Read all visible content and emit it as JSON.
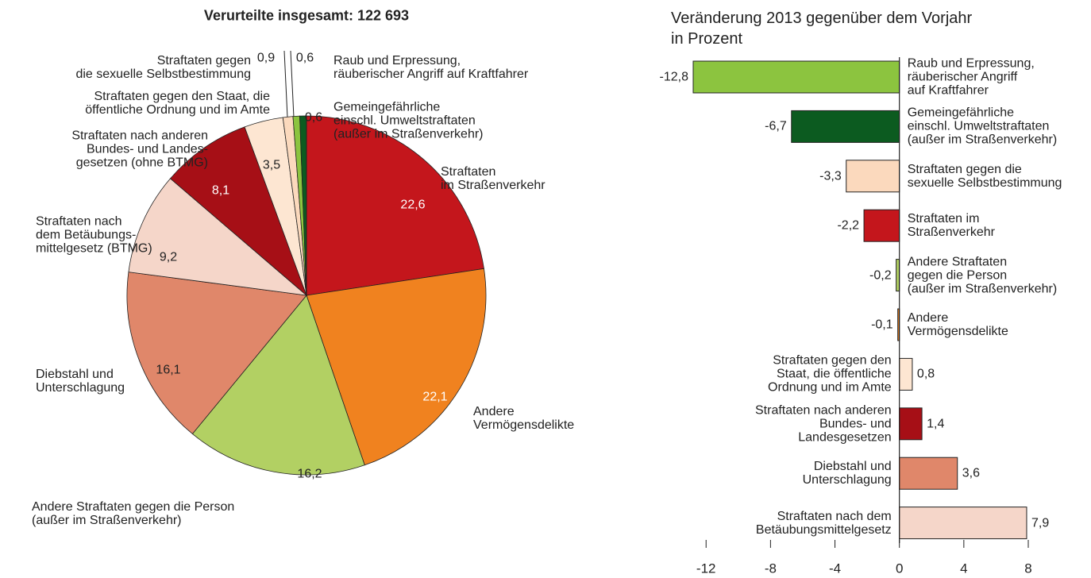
{
  "chart_data": [
    {
      "type": "pie",
      "title": "Verurteilte insgesamt: 122 693",
      "categories": [
        "Straftaten\nim Straßenverkehr",
        "Andere\nVermögensdelikte",
        "Andere Straftaten gegen die Person\n(außer im Straßenverkehr)",
        "Diebstahl und\nUnterschlagung",
        "Straftaten nach\ndem Betäubungs-\nmittelgesetz (BTMG)",
        "Straftaten nach anderen\nBundes- und Landes-\ngesetzen (ohne BTMG)",
        "Straftaten gegen den Staat, die\nöffentliche Ordnung und im Amte",
        "Straftaten gegen\ndie sexuelle Selbstbestimmung",
        "Raub und Erpressung,\nräuberischer Angriff auf Kraftfahrer",
        "Gemeingefährliche\neinschl. Umweltstraftaten\n(außer im Straßenverkehr)"
      ],
      "values": [
        22.6,
        22.1,
        16.2,
        16.1,
        9.2,
        8.1,
        3.5,
        0.9,
        0.6,
        0.6
      ],
      "value_labels": [
        "22,6",
        "22,1",
        "16,2",
        "16,1",
        "9,2",
        "8,1",
        "3,5",
        "0,9",
        "0,6",
        "0,6"
      ],
      "colors": [
        "#c4161c",
        "#f0821f",
        "#b2d063",
        "#e0876a",
        "#f5d6c9",
        "#a60f16",
        "#fde6d2",
        "#fbd9bd",
        "#8cc43f",
        "#0c5b20"
      ]
    },
    {
      "type": "hbar",
      "title": "Veränderung 2013 gegenüber dem Vorjahr\nin Prozent",
      "categories": [
        "Raub und Erpressung,\nräuberischer Angriff\nauf Kraftfahrer",
        "Gemeingefährliche\neinschl. Umweltstraftaten\n(außer im Straßenverkehr)",
        "Straftaten gegen die\nsexuelle Selbstbestimmung",
        "Straftaten im\nStraßenverkehr",
        "Andere Straftaten\ngegen die Person\n(außer im Straßenverkehr)",
        "Andere\nVermögensdelikte",
        "Straftaten gegen den\nStaat, die öffentliche\nOrdnung und im Amte",
        "Straftaten nach anderen\nBundes- und\nLandesgesetzen",
        "Diebstahl und\nUnterschlagung",
        "Straftaten nach dem\nBetäubungsmittelgesetz"
      ],
      "values": [
        -12.8,
        -6.7,
        -3.3,
        -2.2,
        -0.2,
        -0.1,
        0.8,
        1.4,
        3.6,
        7.9
      ],
      "value_labels": [
        "-12,8",
        "-6,7",
        "-3,3",
        "-2,2",
        "-0,2",
        "-0,1",
        "0,8",
        "1,4",
        "3,6",
        "7,9"
      ],
      "colors": [
        "#8cc43f",
        "#0c5b20",
        "#fbd9bd",
        "#c4161c",
        "#b2d063",
        "#f0821f",
        "#fde6d2",
        "#a60f16",
        "#e0876a",
        "#f5d6c9"
      ],
      "xlim": [
        -12.8,
        8
      ],
      "xticks": [
        -12,
        -8,
        -4,
        0,
        4,
        8
      ]
    }
  ]
}
